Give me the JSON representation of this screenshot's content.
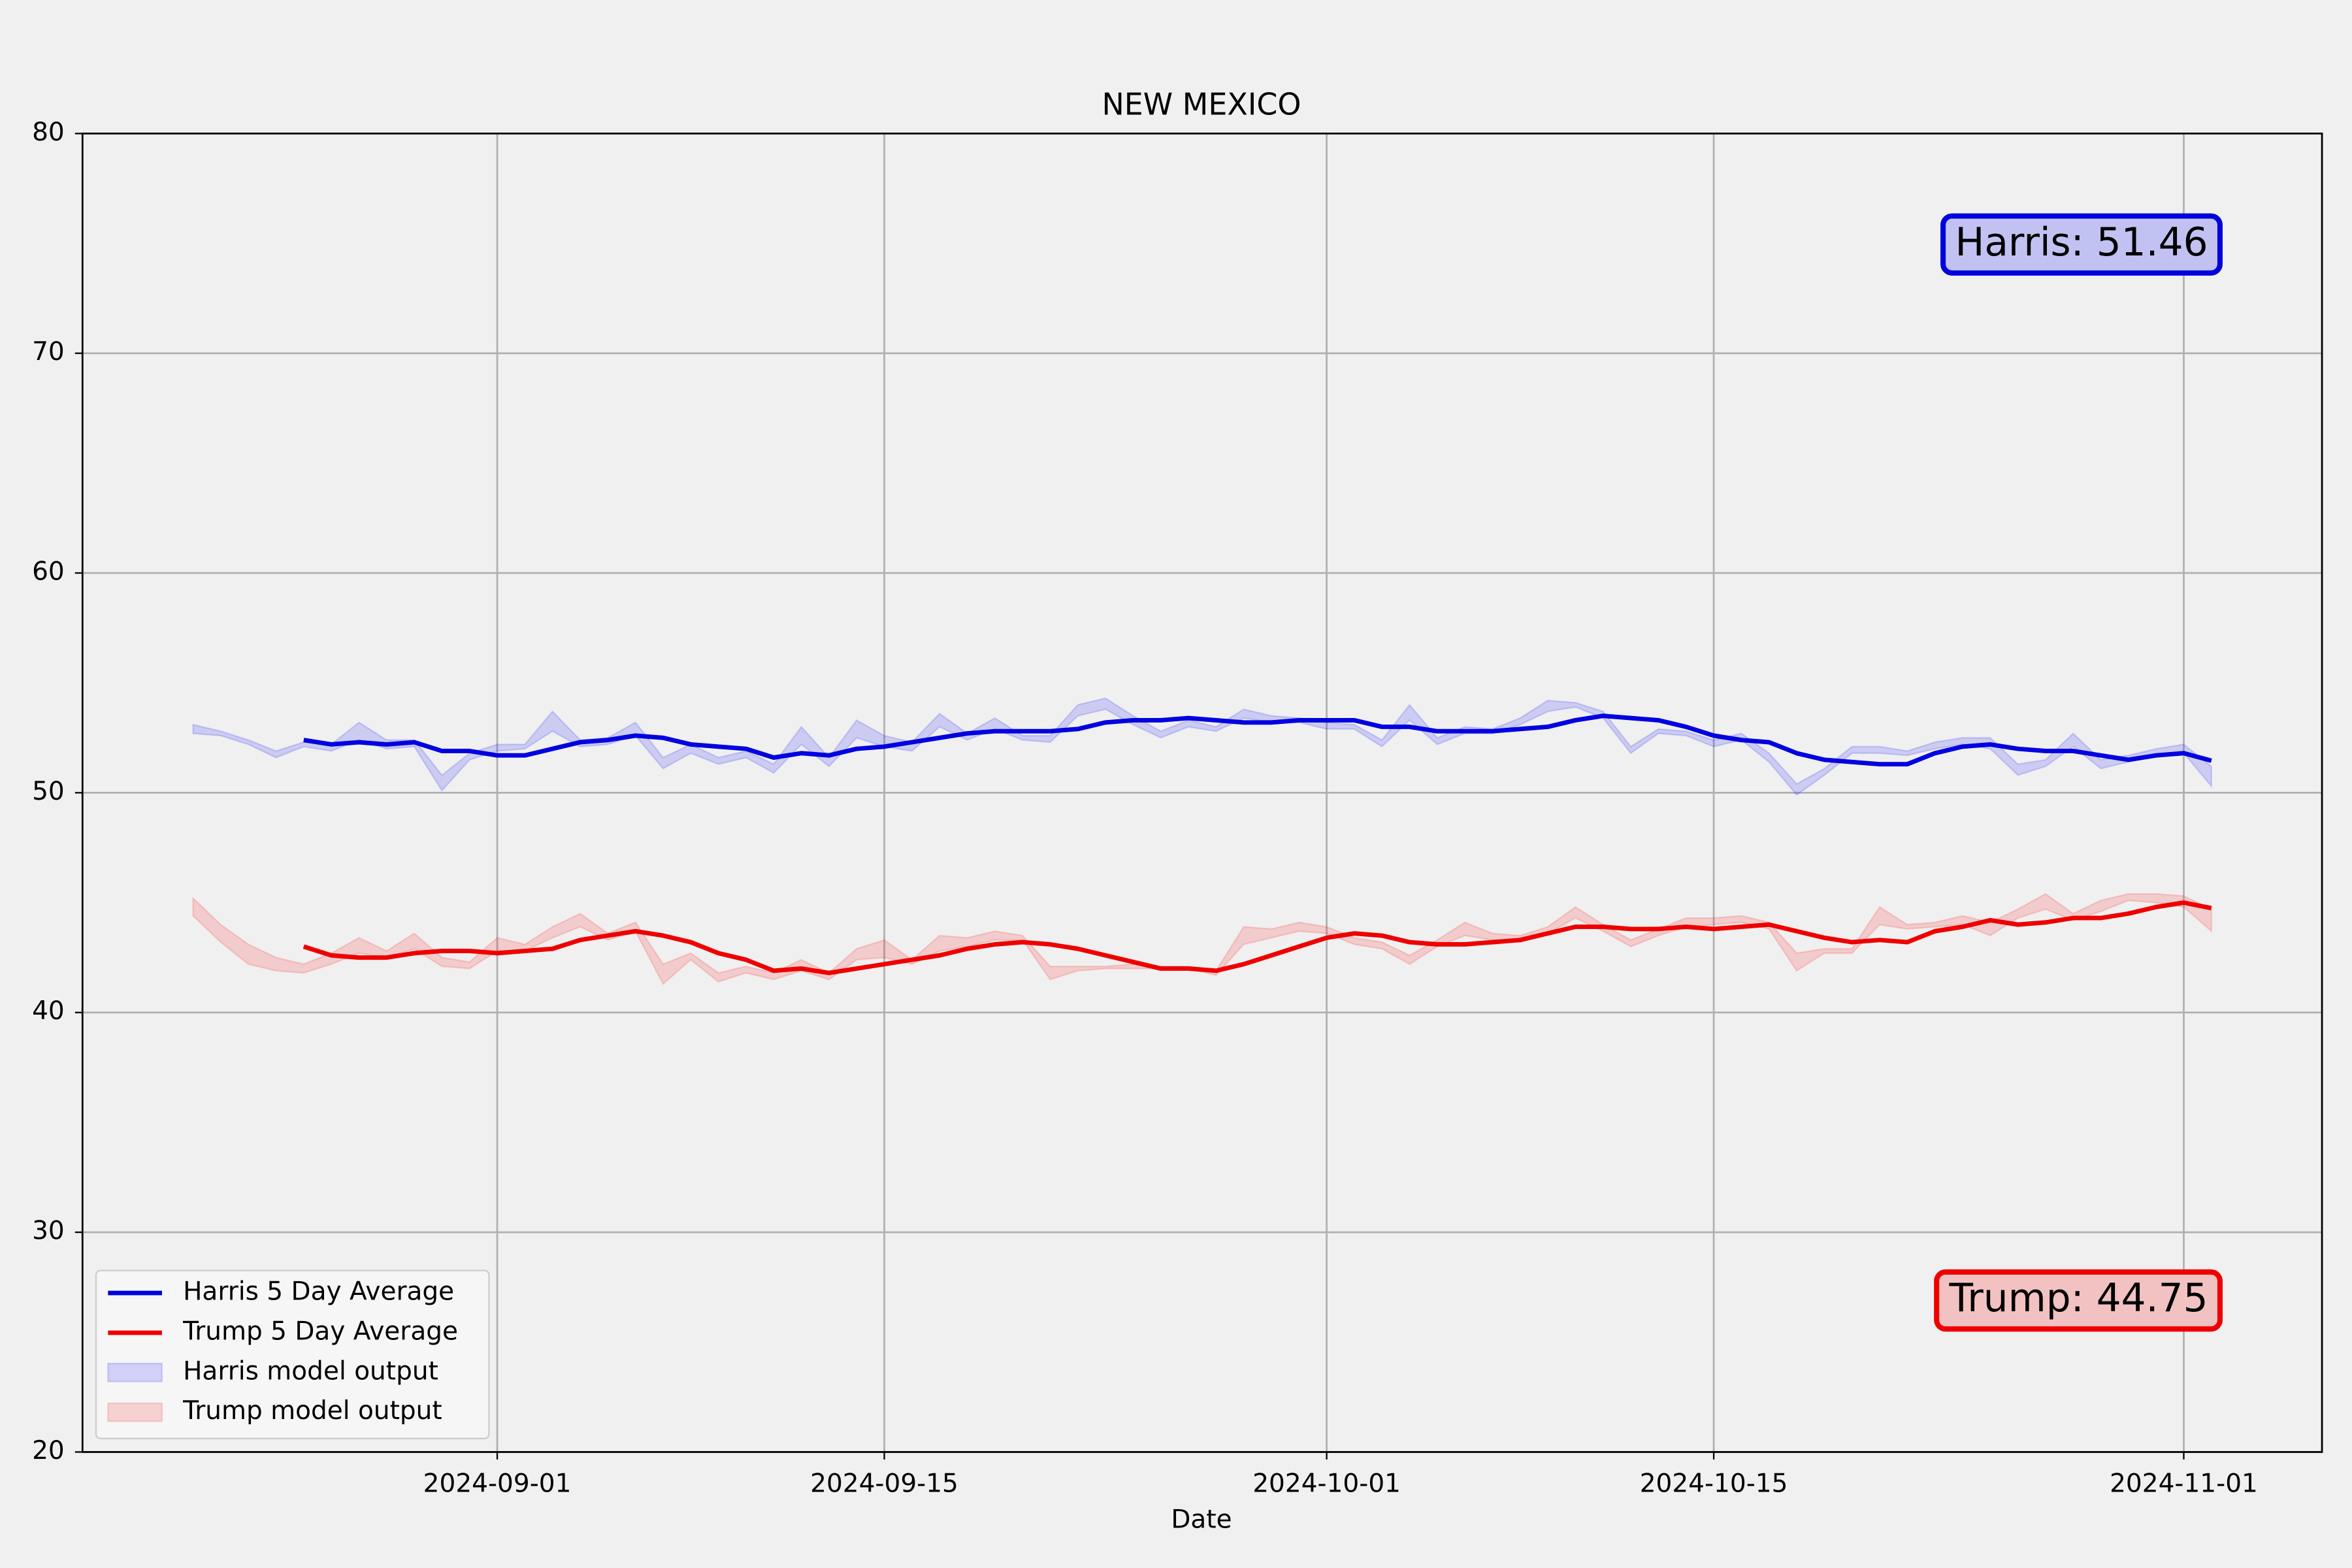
{
  "chart_data": {
    "type": "line",
    "title": "NEW MEXICO",
    "xlabel": "Date",
    "x": [
      "2024-08-21",
      "2024-08-22",
      "2024-08-23",
      "2024-08-24",
      "2024-08-25",
      "2024-08-26",
      "2024-08-27",
      "2024-08-28",
      "2024-08-29",
      "2024-08-30",
      "2024-08-31",
      "2024-09-01",
      "2024-09-02",
      "2024-09-03",
      "2024-09-04",
      "2024-09-05",
      "2024-09-06",
      "2024-09-07",
      "2024-09-08",
      "2024-09-09",
      "2024-09-10",
      "2024-09-11",
      "2024-09-12",
      "2024-09-13",
      "2024-09-14",
      "2024-09-15",
      "2024-09-16",
      "2024-09-17",
      "2024-09-18",
      "2024-09-19",
      "2024-09-20",
      "2024-09-21",
      "2024-09-22",
      "2024-09-23",
      "2024-09-24",
      "2024-09-25",
      "2024-09-26",
      "2024-09-27",
      "2024-09-28",
      "2024-09-29",
      "2024-09-30",
      "2024-10-01",
      "2024-10-02",
      "2024-10-03",
      "2024-10-04",
      "2024-10-05",
      "2024-10-06",
      "2024-10-07",
      "2024-10-08",
      "2024-10-09",
      "2024-10-10",
      "2024-10-11",
      "2024-10-12",
      "2024-10-13",
      "2024-10-14",
      "2024-10-15",
      "2024-10-16",
      "2024-10-17",
      "2024-10-18",
      "2024-10-19",
      "2024-10-20",
      "2024-10-21",
      "2024-10-22",
      "2024-10-23",
      "2024-10-24",
      "2024-10-25",
      "2024-10-26",
      "2024-10-27",
      "2024-10-28",
      "2024-10-29",
      "2024-10-30",
      "2024-10-31",
      "2024-11-01",
      "2024-11-02"
    ],
    "xlim": [
      "2024-08-17",
      "2024-11-06"
    ],
    "xticks": [
      "2024-09-01",
      "2024-09-15",
      "2024-10-01",
      "2024-10-15",
      "2024-11-01"
    ],
    "ylim": [
      20,
      80
    ],
    "yticks": [
      20,
      30,
      40,
      50,
      60,
      70,
      80
    ],
    "grid": true,
    "legend_loc": "lower left",
    "series": [
      {
        "name": "Harris 5 Day Average",
        "kind": "line",
        "color": "#0000e0",
        "values": [
          null,
          null,
          null,
          null,
          52.4,
          52.2,
          52.3,
          52.2,
          52.3,
          51.9,
          51.9,
          51.7,
          51.7,
          52.0,
          52.3,
          52.4,
          52.6,
          52.5,
          52.2,
          52.1,
          52.0,
          51.6,
          51.8,
          51.7,
          52.0,
          52.1,
          52.3,
          52.5,
          52.7,
          52.8,
          52.8,
          52.8,
          52.9,
          53.2,
          53.3,
          53.3,
          53.4,
          53.3,
          53.2,
          53.2,
          53.3,
          53.3,
          53.3,
          53.0,
          53.0,
          52.8,
          52.8,
          52.8,
          52.9,
          53.0,
          53.3,
          53.5,
          53.4,
          53.3,
          53.0,
          52.6,
          52.4,
          52.3,
          51.8,
          51.5,
          51.4,
          51.3,
          51.3,
          51.8,
          52.1,
          52.2,
          52.0,
          51.9,
          51.9,
          51.7,
          51.5,
          51.7,
          51.8,
          51.46
        ]
      },
      {
        "name": "Trump 5 Day Average",
        "kind": "line",
        "color": "#ee0000",
        "values": [
          null,
          null,
          null,
          null,
          43.0,
          42.6,
          42.5,
          42.5,
          42.7,
          42.8,
          42.8,
          42.7,
          42.8,
          42.9,
          43.3,
          43.5,
          43.7,
          43.5,
          43.2,
          42.7,
          42.4,
          41.9,
          42.0,
          41.8,
          42.0,
          42.2,
          42.4,
          42.6,
          42.9,
          43.1,
          43.2,
          43.1,
          42.9,
          42.6,
          42.3,
          42.0,
          42.0,
          41.9,
          42.2,
          42.6,
          43.0,
          43.4,
          43.6,
          43.5,
          43.2,
          43.1,
          43.1,
          43.2,
          43.3,
          43.6,
          43.9,
          43.9,
          43.8,
          43.8,
          43.9,
          43.8,
          43.9,
          44.0,
          43.7,
          43.4,
          43.2,
          43.3,
          43.2,
          43.7,
          43.9,
          44.2,
          44.0,
          44.1,
          44.3,
          44.3,
          44.5,
          44.8,
          45.0,
          44.75
        ]
      },
      {
        "name": "Harris model output",
        "kind": "band",
        "color": "#0000ff",
        "alpha": 0.15,
        "lower": [
          52.7,
          52.6,
          52.2,
          51.6,
          52.1,
          51.9,
          52.4,
          52.0,
          52.1,
          50.1,
          51.5,
          51.9,
          52.0,
          52.8,
          52.1,
          52.2,
          52.6,
          51.1,
          51.8,
          51.3,
          51.6,
          50.9,
          52.2,
          51.2,
          52.5,
          52.1,
          51.9,
          53.0,
          52.4,
          52.9,
          52.4,
          52.3,
          53.5,
          53.8,
          53.1,
          52.5,
          53.0,
          52.8,
          53.4,
          53.2,
          53.2,
          52.9,
          52.9,
          52.1,
          53.3,
          52.2,
          52.7,
          52.7,
          53.1,
          53.7,
          53.9,
          53.4,
          51.8,
          52.7,
          52.6,
          52.1,
          52.4,
          51.4,
          49.9,
          50.8,
          51.8,
          51.8,
          51.7,
          52.0,
          52.2,
          52.0,
          50.8,
          51.2,
          52.1,
          51.1,
          51.4,
          51.7,
          51.8,
          50.3
        ],
        "upper": [
          53.1,
          52.8,
          52.4,
          51.9,
          52.3,
          52.2,
          53.2,
          52.4,
          52.4,
          50.8,
          51.8,
          52.2,
          52.2,
          53.7,
          52.4,
          52.5,
          53.2,
          51.6,
          52.2,
          51.6,
          51.9,
          51.3,
          53.0,
          51.6,
          53.3,
          52.6,
          52.3,
          53.6,
          52.7,
          53.4,
          52.6,
          52.6,
          54.0,
          54.3,
          53.5,
          52.8,
          53.3,
          53.0,
          53.8,
          53.5,
          53.4,
          53.2,
          53.1,
          52.4,
          54.0,
          52.5,
          53.0,
          52.9,
          53.4,
          54.2,
          54.1,
          53.7,
          52.1,
          52.9,
          52.8,
          52.4,
          52.7,
          51.8,
          50.4,
          51.1,
          52.1,
          52.1,
          51.9,
          52.3,
          52.5,
          52.5,
          51.3,
          51.5,
          52.7,
          51.5,
          51.7,
          52.0,
          52.2,
          51.2
        ]
      },
      {
        "name": "Trump model output",
        "kind": "band",
        "color": "#ff0000",
        "alpha": 0.15,
        "lower": [
          44.4,
          43.2,
          42.2,
          41.9,
          41.8,
          42.2,
          42.7,
          42.5,
          42.9,
          42.1,
          42.0,
          42.8,
          42.8,
          43.4,
          43.9,
          43.3,
          43.7,
          41.3,
          42.4,
          41.4,
          41.8,
          41.5,
          41.9,
          41.5,
          42.4,
          42.5,
          42.2,
          42.8,
          43.0,
          43.3,
          43.3,
          41.5,
          41.9,
          42.0,
          42.0,
          42.0,
          42.0,
          41.7,
          43.1,
          43.4,
          43.7,
          43.6,
          43.1,
          42.9,
          42.2,
          43.0,
          43.5,
          43.3,
          43.2,
          43.6,
          44.3,
          43.7,
          43.0,
          43.5,
          43.9,
          44.0,
          44.1,
          43.8,
          41.9,
          42.7,
          42.7,
          44.0,
          43.8,
          43.9,
          44.0,
          43.5,
          44.3,
          44.7,
          44.2,
          44.6,
          45.1,
          45.0,
          44.8,
          43.7
        ],
        "upper": [
          45.2,
          44.0,
          43.1,
          42.5,
          42.2,
          42.7,
          43.4,
          42.8,
          43.6,
          42.5,
          42.3,
          43.4,
          43.1,
          43.9,
          44.5,
          43.6,
          44.1,
          42.2,
          42.7,
          41.8,
          42.1,
          41.8,
          42.4,
          41.8,
          42.9,
          43.3,
          42.4,
          43.5,
          43.4,
          43.7,
          43.5,
          42.1,
          42.1,
          42.1,
          42.2,
          42.1,
          42.1,
          41.9,
          43.9,
          43.8,
          44.1,
          43.9,
          43.4,
          43.2,
          42.6,
          43.3,
          44.1,
          43.6,
          43.5,
          43.9,
          44.8,
          44.0,
          43.3,
          43.8,
          44.3,
          44.3,
          44.4,
          44.1,
          42.7,
          42.9,
          42.9,
          44.8,
          44.0,
          44.1,
          44.4,
          44.1,
          44.7,
          45.4,
          44.5,
          45.1,
          45.4,
          45.4,
          45.3,
          44.7
        ]
      }
    ],
    "annotations": [
      {
        "text": "Harris: 51.46",
        "loc": "upper right",
        "color": "#0000dd",
        "facecolor": "#c2c2f2"
      },
      {
        "text": "Trump: 44.75",
        "loc": "lower right",
        "color": "#ee0000",
        "facecolor": "#f2c2c2"
      }
    ]
  }
}
